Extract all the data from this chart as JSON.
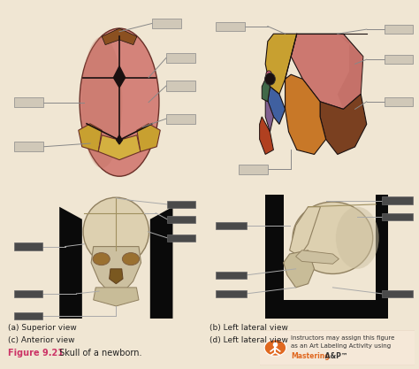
{
  "bg_color": "#f0e6d3",
  "title_color": "#cc3366",
  "title_text": "Figure 9.21",
  "title_rest": " Skull of a newborn.",
  "title_rest_color": "#222222",
  "panel_label_color": "#222222",
  "panel_label_fontsize": 6.5,
  "panel_labels": [
    "(a) Superior view",
    "(b) Left lateral view",
    "(c) Anterior view",
    "(d) Left lateral view"
  ],
  "label_box_color_light": "#d0c8b8",
  "label_box_color_dark": "#4a4a4a",
  "label_line_color_light": "#888888",
  "label_line_color_dark": "#aaaaaa",
  "panel_a": {
    "bg": "#f0e6d3",
    "skull_pink": "#d4837a",
    "skull_shadow": "#c07060",
    "skull_highlight": "#e0a090",
    "frontal_color": "#8B5020",
    "occipital_yellow": "#c8a030",
    "occipital_yellow2": "#d4b040",
    "suture_color": "#1a1010",
    "fontanelle_color": "#1a1010"
  },
  "panel_b": {
    "bg": "#f0e6d3",
    "parietal_pink": "#cc7870",
    "parietal_shadow": "#bb6860",
    "frontal_yellow": "#c8a030",
    "frontal_yellow2": "#d4b040",
    "occipital_brown": "#7a4020",
    "temporal_orange": "#c87828",
    "temporal_orange2": "#b86820",
    "sphenoid_blue": "#4060a0",
    "nasal_purple": "#806090",
    "ethmoid_green": "#406848",
    "lacrimal_pink": "#d06080",
    "mandible_red": "#b04020",
    "eye_dark": "#1a1010",
    "suture_color": "#1a1010"
  },
  "panel_c": {
    "bg": "#0a0a0a",
    "skull_cream": "#ddd0b0",
    "skull_cream2": "#ccc0a0",
    "skull_shadow": "#b0a080",
    "eye_amber": "#9a7030",
    "nasal_brown": "#7a5820",
    "mandible_color": "#c8bc98"
  },
  "panel_d": {
    "bg": "#0a0a0a",
    "skull_cream": "#ddd0b0",
    "skull_cream2": "#ccc0a0",
    "skull_shadow": "#b0a080",
    "mandible_color": "#c8bc98"
  },
  "note_bg": "#f5e8d8",
  "note_border": "#d4c0a8",
  "note_icon_color": "#e06820",
  "note_text_color": "#333333",
  "note_mastering_color": "#e06820"
}
